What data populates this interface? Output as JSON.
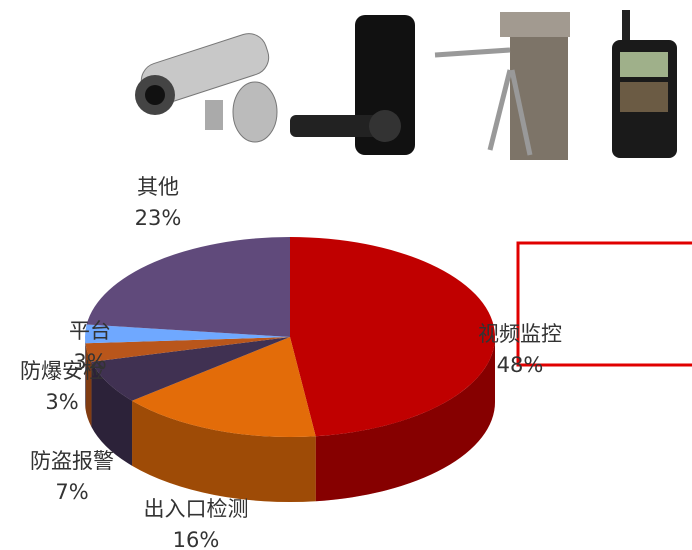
{
  "chart_data": {
    "type": "pie3d",
    "categories": [
      "视频监控",
      "出入口检测",
      "防盗报警",
      "防爆安检",
      "平台",
      "其他"
    ],
    "values": [
      48,
      16,
      7,
      3,
      3,
      23
    ],
    "value_labels": [
      "48%",
      "16%",
      "7%",
      "3%",
      "3%",
      "23%"
    ],
    "colors": [
      "#c00000",
      "#e36c09",
      "#403152",
      "#b9561b",
      "#6fa8ff",
      "#604a7b"
    ]
  }
}
